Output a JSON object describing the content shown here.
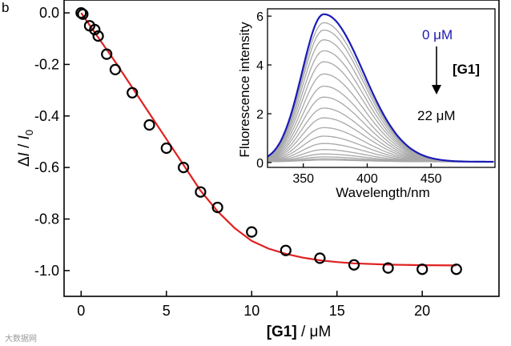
{
  "panel_label": "b",
  "watermark": "大数据网",
  "chart_data": [
    {
      "id": "main",
      "type": "scatter",
      "title": "",
      "xlabel_bold": "[G1]",
      "xlabel_rest": " / μM",
      "ylabel_delta": "Δ",
      "ylabel_I": "I",
      "ylabel_sep": " / ",
      "ylabel_I0_base": "I",
      "ylabel_I0_sub": "0",
      "xlim": [
        -1,
        24.5
      ],
      "ylim": [
        -1.1,
        0.05
      ],
      "xticks": [
        0,
        5,
        10,
        15,
        20
      ],
      "yticks": [
        0.0,
        -0.2,
        -0.4,
        -0.6,
        -0.8,
        -1.0
      ],
      "ytick_labels": [
        "0.0",
        "-0.2",
        "-0.4",
        "-0.6",
        "-0.8",
        "-1.0"
      ],
      "series": [
        {
          "name": "data",
          "marker": "open-circle",
          "color": "#000000",
          "x": [
            0,
            0.1,
            0.5,
            0.8,
            1,
            1.5,
            2,
            3,
            4,
            5,
            6,
            7,
            8,
            10,
            12,
            14,
            16,
            18,
            20,
            22
          ],
          "y": [
            0.0,
            -0.005,
            -0.05,
            -0.065,
            -0.09,
            -0.16,
            -0.22,
            -0.31,
            -0.435,
            -0.525,
            -0.6,
            -0.695,
            -0.755,
            -0.85,
            -0.922,
            -0.952,
            -0.978,
            -0.99,
            -0.995,
            -0.995
          ]
        },
        {
          "name": "fit",
          "type": "line",
          "color": "#e02020",
          "x": [
            0,
            1,
            2,
            3,
            4,
            5,
            6,
            7,
            8,
            9,
            10,
            11,
            12,
            13,
            14,
            15,
            16,
            18,
            20,
            22
          ],
          "y": [
            0.0,
            -0.095,
            -0.19,
            -0.29,
            -0.39,
            -0.49,
            -0.59,
            -0.69,
            -0.77,
            -0.835,
            -0.885,
            -0.915,
            -0.935,
            -0.95,
            -0.96,
            -0.967,
            -0.972,
            -0.977,
            -0.979,
            -0.98
          ]
        }
      ]
    },
    {
      "id": "inset",
      "type": "line",
      "title": "",
      "xlabel": "Wavelength/nm",
      "ylabel": "Fluorescence intensity",
      "xlim": [
        322,
        500
      ],
      "ylim": [
        -0.2,
        6.3
      ],
      "xticks": [
        350,
        400,
        450
      ],
      "yticks": [
        0,
        2,
        4,
        6
      ],
      "peak_nm": 366,
      "series": [
        {
          "name": "0 μM",
          "color": "#1a1ab8",
          "peak": 6.05
        },
        {
          "color": "#a8a8a8",
          "peak": 5.7
        },
        {
          "color": "#a8a8a8",
          "peak": 5.4
        },
        {
          "color": "#a8a8a8",
          "peak": 5.0
        },
        {
          "color": "#a8a8a8",
          "peak": 4.55
        },
        {
          "color": "#a8a8a8",
          "peak": 4.1
        },
        {
          "color": "#a8a8a8",
          "peak": 3.6
        },
        {
          "color": "#a8a8a8",
          "peak": 3.1
        },
        {
          "color": "#a8a8a8",
          "peak": 2.65
        },
        {
          "color": "#a8a8a8",
          "peak": 2.2
        },
        {
          "color": "#a8a8a8",
          "peak": 1.8
        },
        {
          "color": "#a8a8a8",
          "peak": 1.4
        },
        {
          "color": "#a8a8a8",
          "peak": 1.05
        },
        {
          "color": "#a8a8a8",
          "peak": 0.75
        },
        {
          "color": "#a8a8a8",
          "peak": 0.5
        },
        {
          "color": "#a8a8a8",
          "peak": 0.32
        },
        {
          "color": "#a8a8a8",
          "peak": 0.2
        },
        {
          "color": "#a8a8a8",
          "peak": 0.12
        },
        {
          "name": "22 μM",
          "color": "#a8a8a8",
          "peak": 0.07
        }
      ],
      "annotations": {
        "start": "0 μM",
        "start_color": "#1a1ab8",
        "guest": "[G1]",
        "end": "22 μM"
      }
    }
  ]
}
